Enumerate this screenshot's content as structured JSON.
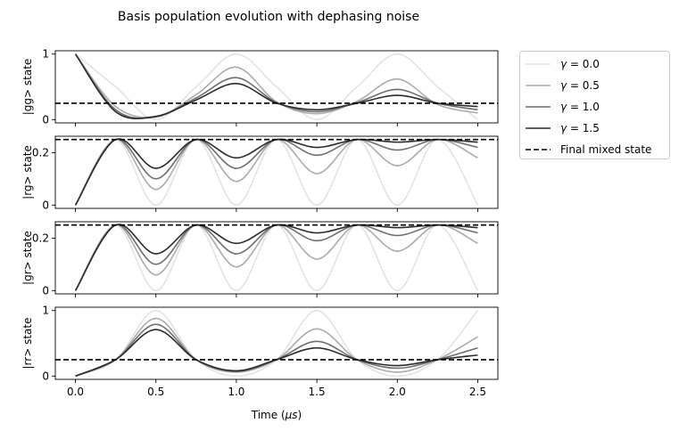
{
  "figure": {
    "title": "Basis population evolution with dephasing noise"
  },
  "legend": {
    "placement": "outside upper-right",
    "entries": [
      {
        "label": "γ = 0.0",
        "color": "#e3e3e3",
        "style": "solid"
      },
      {
        "label": "γ = 0.5",
        "color": "#ababab",
        "style": "solid"
      },
      {
        "label": "γ = 1.0",
        "color": "#6e6e6e",
        "style": "solid"
      },
      {
        "label": "γ = 1.5",
        "color": "#2b2b2b",
        "style": "solid"
      },
      {
        "label": "Final mixed state",
        "color": "#000000",
        "style": "dashed"
      }
    ]
  },
  "chart_data": [
    {
      "type": "line",
      "ylabel": "|gg> state",
      "xlim": [
        -0.125,
        2.625
      ],
      "ylim": [
        -0.05,
        1.05
      ],
      "yticks": [
        0,
        1
      ],
      "reference_line": 0.25,
      "series": [
        {
          "name": "γ = 0.0",
          "x": [
            0,
            0.25,
            0.5,
            0.75,
            1.0,
            1.25,
            1.5,
            1.75,
            2.0,
            2.25,
            2.5
          ],
          "y": [
            1,
            0.5,
            0,
            0.5,
            1,
            0.5,
            0,
            0.5,
            1,
            0.5,
            0
          ]
        },
        {
          "name": "γ = 0.5",
          "x": [
            0,
            0.25,
            0.5,
            0.75,
            1.0,
            1.25,
            1.5,
            1.75,
            2.0,
            2.25,
            2.5
          ],
          "y": [
            1,
            0.2,
            0.04,
            0.38,
            0.8,
            0.27,
            0.09,
            0.28,
            0.62,
            0.23,
            0.1
          ]
        },
        {
          "name": "γ = 1.0",
          "x": [
            0,
            0.25,
            0.5,
            0.75,
            1.0,
            1.25,
            1.5,
            1.75,
            2.0,
            2.25,
            2.5
          ],
          "y": [
            1,
            0.15,
            0.04,
            0.33,
            0.64,
            0.26,
            0.12,
            0.26,
            0.46,
            0.25,
            0.15
          ]
        },
        {
          "name": "γ = 1.5",
          "x": [
            0,
            0.25,
            0.5,
            0.75,
            1.0,
            1.25,
            1.5,
            1.75,
            2.0,
            2.25,
            2.5
          ],
          "y": [
            1,
            0.12,
            0.05,
            0.3,
            0.55,
            0.25,
            0.15,
            0.25,
            0.37,
            0.25,
            0.2
          ]
        }
      ]
    },
    {
      "type": "line",
      "ylabel": "|rg> state",
      "xlim": [
        -0.125,
        2.625
      ],
      "ylim": [
        -0.0125,
        0.2625
      ],
      "yticks": [
        0,
        0.2
      ],
      "reference_line": 0.25,
      "series": [
        {
          "name": "γ = 0.0",
          "x": [
            0,
            0.25,
            0.5,
            0.75,
            1.0,
            1.25,
            1.5,
            1.75,
            2.0,
            2.25,
            2.5
          ],
          "y": [
            0,
            0.25,
            0,
            0.25,
            0,
            0.25,
            0,
            0.25,
            0,
            0.25,
            0
          ]
        },
        {
          "name": "γ = 0.5",
          "x": [
            0,
            0.25,
            0.5,
            0.75,
            1.0,
            1.25,
            1.5,
            1.75,
            2.0,
            2.25,
            2.5
          ],
          "y": [
            0,
            0.25,
            0.06,
            0.25,
            0.09,
            0.25,
            0.12,
            0.25,
            0.15,
            0.25,
            0.18
          ]
        },
        {
          "name": "γ = 1.0",
          "x": [
            0,
            0.25,
            0.5,
            0.75,
            1.0,
            1.25,
            1.5,
            1.75,
            2.0,
            2.25,
            2.5
          ],
          "y": [
            0,
            0.25,
            0.1,
            0.25,
            0.14,
            0.25,
            0.19,
            0.25,
            0.21,
            0.25,
            0.22
          ]
        },
        {
          "name": "γ = 1.5",
          "x": [
            0,
            0.25,
            0.5,
            0.75,
            1.0,
            1.25,
            1.5,
            1.75,
            2.0,
            2.25,
            2.5
          ],
          "y": [
            0,
            0.25,
            0.14,
            0.25,
            0.18,
            0.25,
            0.22,
            0.25,
            0.24,
            0.25,
            0.24
          ]
        }
      ]
    },
    {
      "type": "line",
      "ylabel": "|gr> state",
      "xlim": [
        -0.125,
        2.625
      ],
      "ylim": [
        -0.0125,
        0.2625
      ],
      "yticks": [
        0,
        0.2
      ],
      "reference_line": 0.25,
      "series": [
        {
          "name": "γ = 0.0",
          "x": [
            0,
            0.25,
            0.5,
            0.75,
            1.0,
            1.25,
            1.5,
            1.75,
            2.0,
            2.25,
            2.5
          ],
          "y": [
            0,
            0.25,
            0,
            0.25,
            0,
            0.25,
            0,
            0.25,
            0,
            0.25,
            0
          ]
        },
        {
          "name": "γ = 0.5",
          "x": [
            0,
            0.25,
            0.5,
            0.75,
            1.0,
            1.25,
            1.5,
            1.75,
            2.0,
            2.25,
            2.5
          ],
          "y": [
            0,
            0.25,
            0.06,
            0.25,
            0.09,
            0.25,
            0.12,
            0.25,
            0.15,
            0.25,
            0.18
          ]
        },
        {
          "name": "γ = 1.0",
          "x": [
            0,
            0.25,
            0.5,
            0.75,
            1.0,
            1.25,
            1.5,
            1.75,
            2.0,
            2.25,
            2.5
          ],
          "y": [
            0,
            0.25,
            0.1,
            0.25,
            0.14,
            0.25,
            0.19,
            0.25,
            0.21,
            0.25,
            0.22
          ]
        },
        {
          "name": "γ = 1.5",
          "x": [
            0,
            0.25,
            0.5,
            0.75,
            1.0,
            1.25,
            1.5,
            1.75,
            2.0,
            2.25,
            2.5
          ],
          "y": [
            0,
            0.25,
            0.14,
            0.25,
            0.18,
            0.25,
            0.22,
            0.25,
            0.24,
            0.25,
            0.24
          ]
        }
      ]
    },
    {
      "type": "line",
      "ylabel": "|rr> state",
      "xlabel": "Time ($\\mu s$)",
      "xlim": [
        -0.125,
        2.625
      ],
      "ylim": [
        -0.05,
        1.05
      ],
      "yticks": [
        0,
        1
      ],
      "xticks": [
        0.0,
        0.5,
        1.0,
        1.5,
        2.0,
        2.5
      ],
      "xtick_labels": [
        "0.0",
        "0.5",
        "1.0",
        "1.5",
        "2.0",
        "2.5"
      ],
      "reference_line": 0.25,
      "series": [
        {
          "name": "γ = 0.0",
          "x": [
            0,
            0.25,
            0.5,
            0.75,
            1.0,
            1.25,
            1.5,
            1.75,
            2.0,
            2.25,
            2.5
          ],
          "y": [
            0,
            0.25,
            1,
            0.25,
            0,
            0.25,
            1,
            0.25,
            0,
            0.25,
            1
          ]
        },
        {
          "name": "γ = 0.5",
          "x": [
            0,
            0.25,
            0.5,
            0.75,
            1.0,
            1.25,
            1.5,
            1.75,
            2.0,
            2.25,
            2.5
          ],
          "y": [
            0,
            0.25,
            0.88,
            0.25,
            0.06,
            0.25,
            0.72,
            0.25,
            0.06,
            0.25,
            0.6
          ]
        },
        {
          "name": "γ = 1.0",
          "x": [
            0,
            0.25,
            0.5,
            0.75,
            1.0,
            1.25,
            1.5,
            1.75,
            2.0,
            2.25,
            2.5
          ],
          "y": [
            0,
            0.25,
            0.79,
            0.25,
            0.07,
            0.25,
            0.53,
            0.25,
            0.12,
            0.25,
            0.43
          ]
        },
        {
          "name": "γ = 1.5",
          "x": [
            0,
            0.25,
            0.5,
            0.75,
            1.0,
            1.25,
            1.5,
            1.75,
            2.0,
            2.25,
            2.5
          ],
          "y": [
            0,
            0.25,
            0.71,
            0.25,
            0.08,
            0.25,
            0.43,
            0.25,
            0.16,
            0.25,
            0.32
          ]
        }
      ]
    }
  ]
}
